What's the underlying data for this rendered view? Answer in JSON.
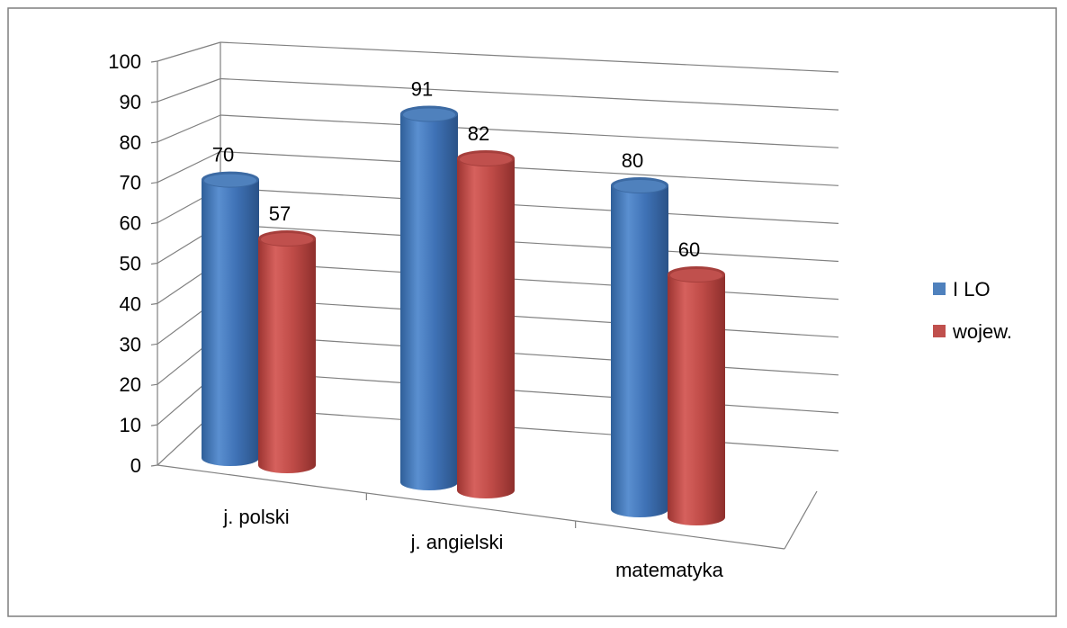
{
  "chart_data": {
    "type": "bar",
    "style": "3d-cylinder",
    "categories": [
      "j. polski",
      "j. angielski",
      "matematyka"
    ],
    "series": [
      {
        "name": "I LO",
        "values": [
          70,
          91,
          80
        ],
        "color": "#4f81bd"
      },
      {
        "name": "wojew.",
        "values": [
          57,
          82,
          60
        ],
        "color": "#c0504d"
      }
    ],
    "ylim": [
      0,
      100
    ],
    "yticks": [
      "0",
      "10",
      "20",
      "30",
      "40",
      "50",
      "60",
      "70",
      "80",
      "90",
      "100"
    ],
    "data_labels": true,
    "grid": true,
    "legend": "right"
  }
}
